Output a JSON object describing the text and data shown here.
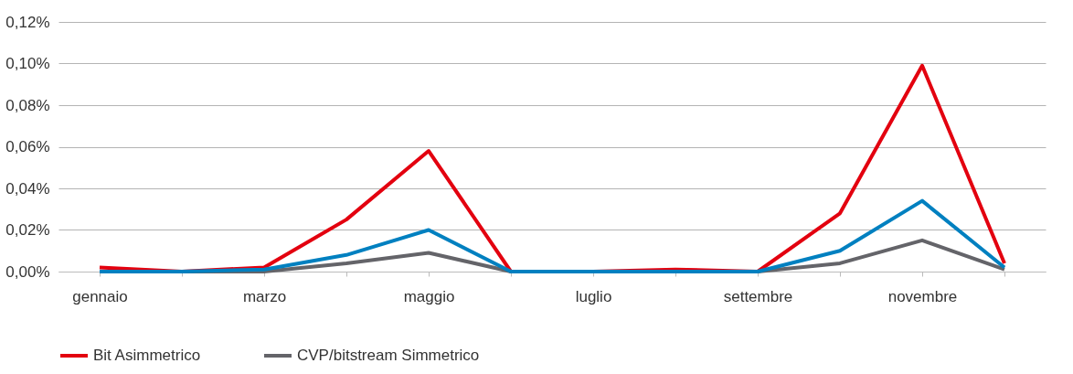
{
  "chart_data": {
    "type": "line",
    "categories": [
      "gennaio",
      null,
      "marzo",
      null,
      "maggio",
      null,
      "luglio",
      null,
      "settembre",
      null,
      "novembre",
      null
    ],
    "series": [
      {
        "name": "Bit Asimmetrico",
        "color": "#e3000f",
        "values": [
          0.002,
          0,
          0.002,
          0.025,
          0.058,
          0,
          0,
          0.001,
          0,
          0.028,
          0.099,
          0.004
        ]
      },
      {
        "name": "CVP/bitstream Simmetrico",
        "color": "#646469",
        "values": [
          0,
          0,
          0,
          0.004,
          0.009,
          0,
          0,
          0,
          0,
          0.004,
          0.015,
          0.001
        ]
      },
      {
        "color": "#0080c0",
        "values": [
          0,
          0,
          0.001,
          0.008,
          0.02,
          0,
          0,
          0,
          0,
          0.01,
          0.034,
          0.002
        ]
      }
    ],
    "ylim": [
      0,
      0.12
    ],
    "yticks": [
      {
        "value": 0,
        "label": "0,00%"
      },
      {
        "value": 0.02,
        "label": "0,02%"
      },
      {
        "value": 0.04,
        "label": "0,04%"
      },
      {
        "value": 0.06,
        "label": "0,06%"
      },
      {
        "value": 0.08,
        "label": "0,08%"
      },
      {
        "value": 0.1,
        "label": "0,10%"
      },
      {
        "value": 0.12,
        "label": "0,12%"
      }
    ],
    "grid": "y",
    "legend": "bottom left",
    "marker": "none",
    "line_style": "solid"
  }
}
